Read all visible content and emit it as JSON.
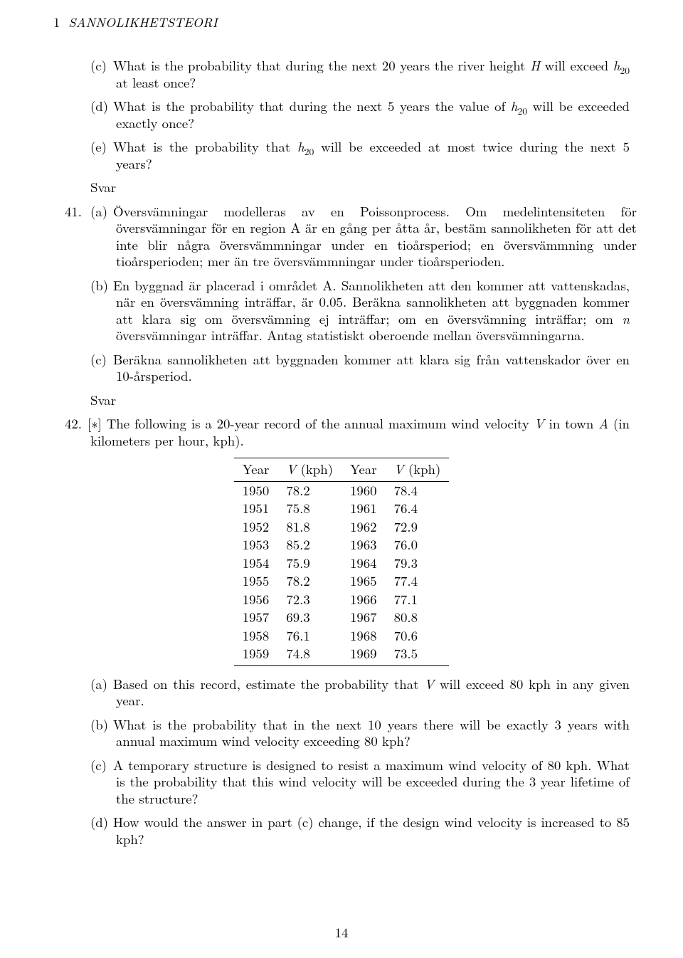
{
  "header": {
    "section_num": "1",
    "section_title": "SANNOLIKHETSTEORI"
  },
  "q40": {
    "c": "What is the probability that during the next 20 years the river height H will exceed h20 at least once?",
    "d": "What is the probability that during the next 5 years the value of h20 will be exceeded exactly once?",
    "e": "What is the probability that h20 will be exceeded at most twice during the next 5 years?"
  },
  "svar": "Svar",
  "q41": {
    "num": "41.",
    "a": "Översvämningar modelleras av en Poissonprocess. Om medelintensiteten för översvämningar för en region A är en gång per åtta år, bestäm sannolikheten för att det inte blir några översvämmningar under en tioårsperiod; en översvämmning under tioårsperioden; mer än tre översvämmningar under tioårsperioden.",
    "b": "En byggnad är placerad i området A. Sannolikheten att den kommer att vattenskadas, när en översvämning inträffar, är 0.05. Beräkna sannolikheten att byggnaden kommer att klara sig om översvämning ej inträffar; om en översvämning inträffar; om n översvämningar inträffar. Antag statistiskt oberoende mellan översvämningarna.",
    "c": "Beräkna sannolikheten att byggnaden kommer att klara sig från vattenskador över en 10-årsperiod."
  },
  "q42": {
    "num": "42.",
    "intro": "[∗] The following is a 20-year record of the annual maximum wind velocity V in town A (in kilometers per hour, kph).",
    "table": {
      "headers": [
        "Year",
        "V (kph)",
        "Year",
        "V (kph)"
      ],
      "rows": [
        [
          "1950",
          "78.2",
          "1960",
          "78.4"
        ],
        [
          "1951",
          "75.8",
          "1961",
          "76.4"
        ],
        [
          "1952",
          "81.8",
          "1962",
          "72.9"
        ],
        [
          "1953",
          "85.2",
          "1963",
          "76.0"
        ],
        [
          "1954",
          "75.9",
          "1964",
          "79.3"
        ],
        [
          "1955",
          "78.2",
          "1965",
          "77.4"
        ],
        [
          "1956",
          "72.3",
          "1966",
          "77.1"
        ],
        [
          "1957",
          "69.3",
          "1967",
          "80.8"
        ],
        [
          "1958",
          "76.1",
          "1968",
          "70.6"
        ],
        [
          "1959",
          "74.8",
          "1969",
          "73.5"
        ]
      ]
    },
    "a": "Based on this record, estimate the probability that V will exceed 80 kph in any given year.",
    "b": "What is the probability that in the next 10 years there will be exactly 3 years with annual maximum wind velocity exceeding 80 kph?",
    "c": "A temporary structure is designed to resist a maximum wind velocity of 80 kph. What is the probability that this wind velocity will be exceeded during the 3 year lifetime of the structure?",
    "d": "How would the answer in part (c) change, if the design wind velocity is increased to 85 kph?"
  },
  "page_number": "14"
}
